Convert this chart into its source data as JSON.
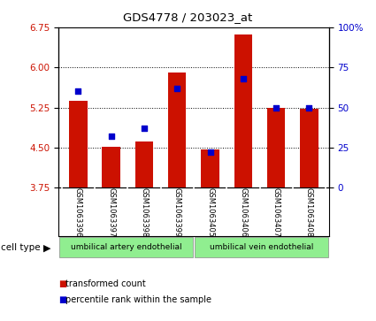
{
  "title": "GDS4778 / 203023_at",
  "samples": [
    "GSM1063396",
    "GSM1063397",
    "GSM1063398",
    "GSM1063399",
    "GSM1063405",
    "GSM1063406",
    "GSM1063407",
    "GSM1063408"
  ],
  "transformed_count": [
    5.37,
    4.52,
    4.62,
    5.9,
    4.47,
    6.62,
    5.25,
    5.22
  ],
  "percentile_rank": [
    60,
    32,
    37,
    62,
    22,
    68,
    50,
    50
  ],
  "ylim_left": [
    3.75,
    6.75
  ],
  "yticks_left": [
    3.75,
    4.5,
    5.25,
    6.0,
    6.75
  ],
  "yticks_right": [
    0,
    25,
    50,
    75,
    100
  ],
  "bar_color": "#cc1100",
  "dot_color": "#0000cc",
  "bar_bottom": 3.75,
  "cell_type_groups": [
    {
      "label": "umbilical artery endothelial",
      "color": "#90ee90"
    },
    {
      "label": "umbilical vein endothelial",
      "color": "#90ee90"
    }
  ],
  "cell_type_label": "cell type",
  "legend_items": [
    {
      "label": "transformed count",
      "color": "#cc1100"
    },
    {
      "label": "percentile rank within the sample",
      "color": "#0000cc"
    }
  ],
  "tick_label_color_left": "#cc1100",
  "tick_label_color_right": "#0000cc"
}
